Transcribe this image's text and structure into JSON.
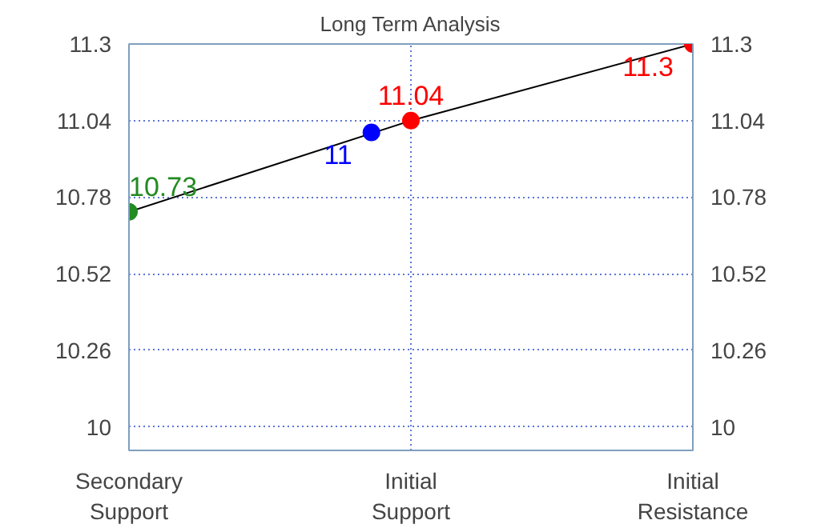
{
  "chart_data": {
    "type": "scatter",
    "title": "Long Term Analysis",
    "categories": [
      "Secondary Support",
      "Initial Support",
      "Initial Resistance"
    ],
    "series": [
      {
        "type": "line",
        "color": "#000000",
        "values": [
          10.73,
          11.04,
          11.3
        ],
        "marker": "none"
      },
      {
        "color": "#228b22",
        "values": [
          10.73,
          null,
          null
        ],
        "marker": "circle",
        "value_labels": [
          "10.73",
          null,
          null
        ]
      },
      {
        "color": "#ff0000",
        "values": [
          null,
          11.04,
          11.3
        ],
        "marker": "circle",
        "value_labels": [
          null,
          "11.04",
          "11.3"
        ]
      },
      {
        "color": "#0000ff",
        "values": [
          null,
          11,
          null
        ],
        "marker": "circle",
        "value_labels": [
          null,
          "11",
          null
        ]
      }
    ],
    "ylim": [
      9.92,
      11.3
    ],
    "yticks": [
      10,
      10.26,
      10.52,
      10.78,
      11.04,
      11.3
    ],
    "y2lim": [
      9.92,
      11.3
    ],
    "y2ticks": [
      10,
      10.26,
      10.52,
      10.78,
      11.04,
      11.3
    ],
    "grid": true
  }
}
